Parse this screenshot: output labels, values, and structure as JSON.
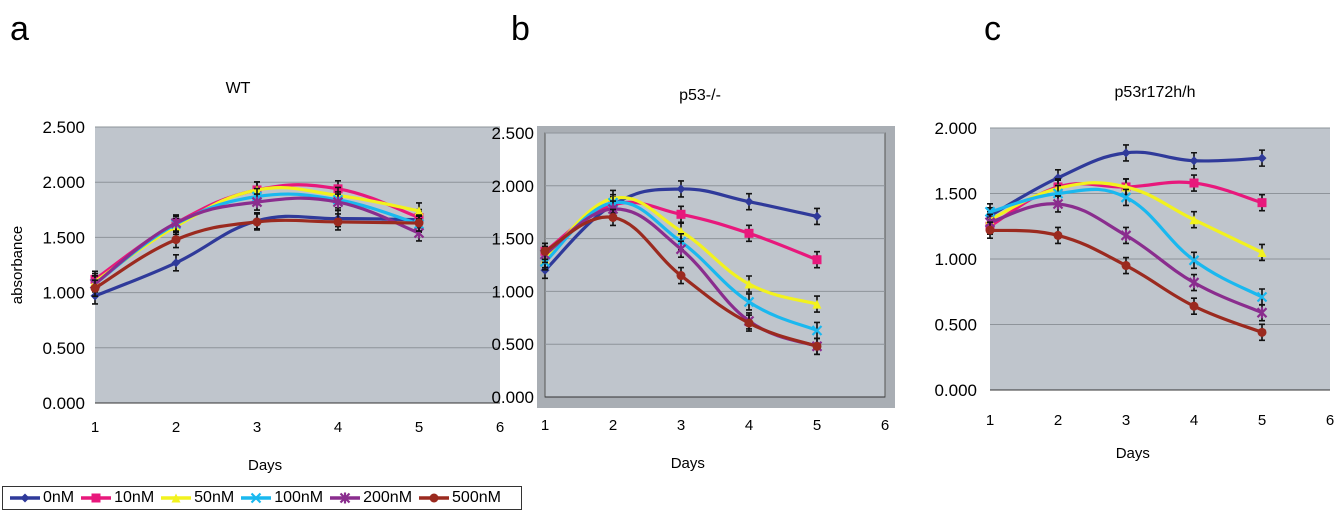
{
  "legend": [
    {
      "name": "0nM",
      "color": "#2f3a9a",
      "marker": "diamond"
    },
    {
      "name": "10nM",
      "color": "#e8187c",
      "marker": "square"
    },
    {
      "name": "50nM",
      "color": "#f2f21e",
      "marker": "triangle"
    },
    {
      "name": "100nM",
      "color": "#1ab8ef",
      "marker": "x"
    },
    {
      "name": "200nM",
      "color": "#8a2d8e",
      "marker": "star"
    },
    {
      "name": "500nM",
      "color": "#9b2a1f",
      "marker": "circle"
    }
  ],
  "chart_data": [
    {
      "panel": "a",
      "type": "line",
      "title": "WT",
      "xlabel": "Days",
      "ylabel": "absorbance",
      "x": [
        1,
        2,
        3,
        4,
        5
      ],
      "x_ticks": [
        "1",
        "2",
        "3",
        "4",
        "5",
        "6"
      ],
      "y_ticks": [
        "0.000",
        "0.500",
        "1.000",
        "1.500",
        "2.000",
        "2.500"
      ],
      "xlim": [
        1,
        6
      ],
      "ylim": [
        0,
        2.5
      ],
      "grid": true,
      "series": [
        {
          "name": "0nM",
          "values": [
            0.97,
            1.27,
            1.65,
            1.67,
            1.66
          ]
        },
        {
          "name": "10nM",
          "values": [
            1.12,
            1.63,
            1.93,
            1.94,
            1.68
          ]
        },
        {
          "name": "50nM",
          "values": [
            1.1,
            1.6,
            1.93,
            1.88,
            1.74
          ]
        },
        {
          "name": "100nM",
          "values": [
            1.08,
            1.62,
            1.87,
            1.84,
            1.62
          ]
        },
        {
          "name": "200nM",
          "values": [
            1.08,
            1.63,
            1.82,
            1.82,
            1.54
          ]
        },
        {
          "name": "500nM",
          "values": [
            1.04,
            1.48,
            1.64,
            1.64,
            1.63
          ]
        }
      ]
    },
    {
      "panel": "b",
      "type": "line",
      "title": "p53-/-",
      "xlabel": "Days",
      "ylabel": "",
      "x": [
        1,
        2,
        3,
        4,
        5
      ],
      "x_ticks": [
        "1",
        "2",
        "3",
        "4",
        "5",
        "6"
      ],
      "y_ticks": [
        "0.000",
        "0.500",
        "1.000",
        "1.500",
        "2.000",
        "2.500"
      ],
      "xlim": [
        1,
        6
      ],
      "ylim": [
        0,
        2.5
      ],
      "grid": true,
      "series": [
        {
          "name": "0nM",
          "values": [
            1.2,
            1.82,
            1.97,
            1.85,
            1.71
          ]
        },
        {
          "name": "10nM",
          "values": [
            1.38,
            1.82,
            1.73,
            1.55,
            1.3
          ]
        },
        {
          "name": "50nM",
          "values": [
            1.3,
            1.88,
            1.57,
            1.07,
            0.88
          ]
        },
        {
          "name": "100nM",
          "values": [
            1.28,
            1.84,
            1.47,
            0.9,
            0.63
          ]
        },
        {
          "name": "200nM",
          "values": [
            1.35,
            1.78,
            1.4,
            0.72,
            0.48
          ]
        },
        {
          "name": "500nM",
          "values": [
            1.38,
            1.7,
            1.15,
            0.7,
            0.48
          ]
        }
      ]
    },
    {
      "panel": "c",
      "type": "line",
      "title": "p53r172h/h",
      "xlabel": "Days",
      "ylabel": "",
      "x": [
        1,
        2,
        3,
        4,
        5
      ],
      "x_ticks": [
        "1",
        "2",
        "3",
        "4",
        "5",
        "6"
      ],
      "y_ticks": [
        "0.000",
        "0.500",
        "1.000",
        "1.500",
        "2.000"
      ],
      "xlim": [
        1,
        6
      ],
      "ylim": [
        0,
        2.0
      ],
      "grid": true,
      "series": [
        {
          "name": "0nM",
          "values": [
            1.33,
            1.62,
            1.81,
            1.75,
            1.77
          ]
        },
        {
          "name": "10nM",
          "values": [
            1.25,
            1.55,
            1.55,
            1.58,
            1.43
          ]
        },
        {
          "name": "50nM",
          "values": [
            1.3,
            1.54,
            1.55,
            1.3,
            1.05
          ]
        },
        {
          "name": "100nM",
          "values": [
            1.36,
            1.5,
            1.47,
            0.99,
            0.71
          ]
        },
        {
          "name": "200nM",
          "values": [
            1.28,
            1.42,
            1.18,
            0.82,
            0.59
          ]
        },
        {
          "name": "500nM",
          "values": [
            1.22,
            1.18,
            0.95,
            0.64,
            0.44
          ]
        }
      ]
    }
  ]
}
